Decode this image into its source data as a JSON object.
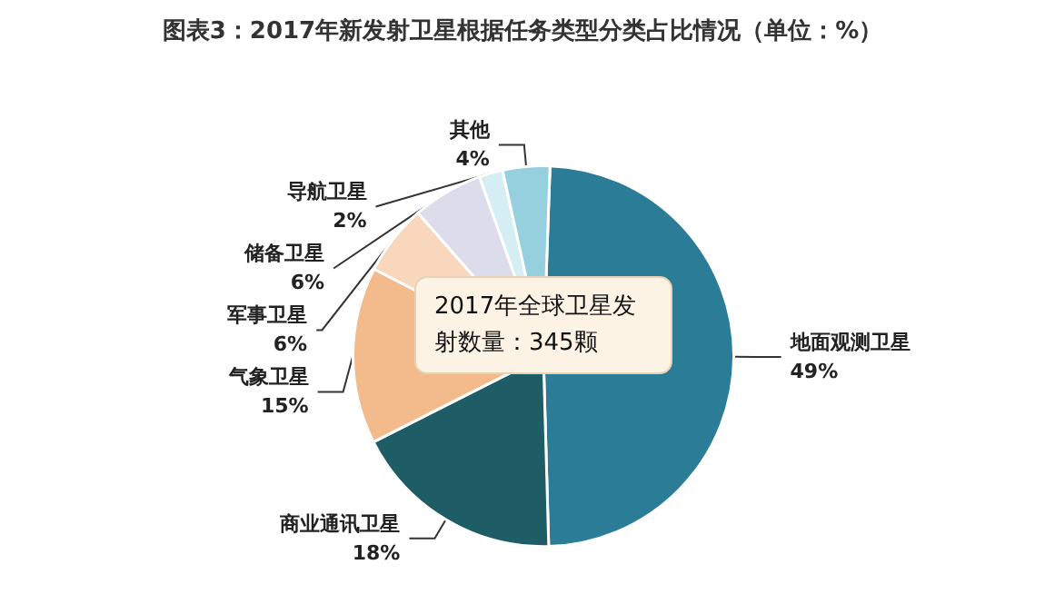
{
  "chart_data": {
    "type": "pie",
    "title": "图表3：2017年新发射卫星根据任务类型分类占比情况（单位：%）",
    "categories": [
      "地面观测卫星",
      "商业通讯卫星",
      "气象卫星",
      "军事卫星",
      "储备卫星",
      "导航卫星",
      "其他"
    ],
    "values": [
      49,
      18,
      15,
      6,
      6,
      2,
      4
    ],
    "value_labels": [
      "49%",
      "18%",
      "15%",
      "6%",
      "6%",
      "2%",
      "4%"
    ],
    "colors": [
      "#2b7d97",
      "#1f5d66",
      "#f3bb8c",
      "#f9d7bc",
      "#dcdcea",
      "#d5eef3",
      "#96cfdd"
    ],
    "annotations": [
      "2017年全球卫星发射数量：345颗"
    ],
    "legend": false
  }
}
